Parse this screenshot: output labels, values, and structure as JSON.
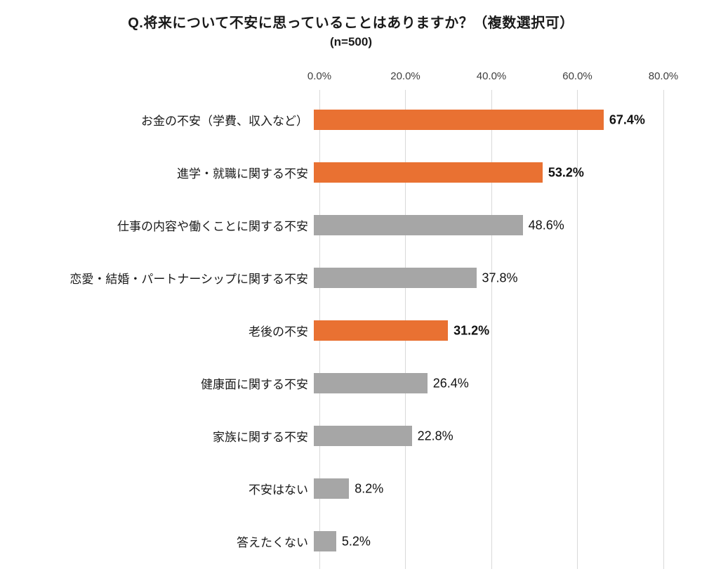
{
  "chart_data": {
    "type": "bar",
    "orientation": "horizontal",
    "title": "Q.将来について不安に思っていることはありますか？（複数選択可）",
    "subtitle": "(n=500)",
    "xlabel": "",
    "ylabel": "",
    "xlim": [
      0,
      80
    ],
    "grid": true,
    "legend": false,
    "ticks": [
      {
        "value": 0,
        "label": "0.0%"
      },
      {
        "value": 20,
        "label": "20.0%"
      },
      {
        "value": 40,
        "label": "40.0%"
      },
      {
        "value": 60,
        "label": "60.0%"
      },
      {
        "value": 80,
        "label": "80.0%"
      }
    ],
    "categories": [
      "お金の不安（学費、収入など）",
      "進学・就職に関する不安",
      "仕事の内容や働くことに関する不安",
      "恋愛・結婚・パートナーシップに関する不安",
      "老後の不安",
      "健康面に関する不安",
      "家族に関する不安",
      "不安はない",
      "答えたくない"
    ],
    "values": [
      67.4,
      53.2,
      48.6,
      37.8,
      31.2,
      26.4,
      22.8,
      8.2,
      5.2
    ],
    "value_labels": [
      "67.4%",
      "53.2%",
      "48.6%",
      "37.8%",
      "31.2%",
      "26.4%",
      "22.8%",
      "8.2%",
      "5.2%"
    ],
    "emphasis": [
      true,
      true,
      false,
      false,
      true,
      false,
      false,
      false,
      false
    ],
    "colors": {
      "emphasis": "#e97132",
      "default": "#a6a6a6",
      "gridline": "#d9d9d9"
    }
  }
}
